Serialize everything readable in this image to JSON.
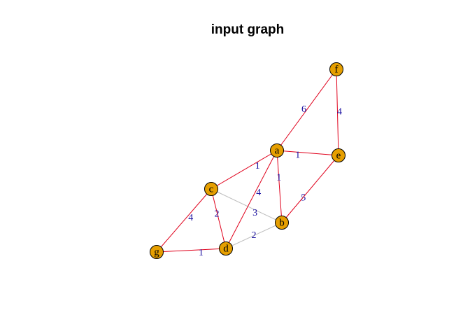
{
  "title": "input graph",
  "colors": {
    "tree_edge": "#e0001b",
    "non_tree_edge": "#bebebe",
    "node_fill": "#e69f00",
    "node_stroke": "#000000",
    "weight_text": "#1a10a0"
  },
  "nodes": [
    {
      "id": "a",
      "label": "a"
    },
    {
      "id": "b",
      "label": "b"
    },
    {
      "id": "c",
      "label": "c"
    },
    {
      "id": "d",
      "label": "d"
    },
    {
      "id": "e",
      "label": "e"
    },
    {
      "id": "f",
      "label": "f"
    },
    {
      "id": "g",
      "label": "g"
    }
  ],
  "edges": [
    {
      "from": "a",
      "to": "f",
      "weight": "6",
      "in_tree": true
    },
    {
      "from": "f",
      "to": "e",
      "weight": "4",
      "in_tree": true
    },
    {
      "from": "a",
      "to": "e",
      "weight": "1",
      "in_tree": true
    },
    {
      "from": "a",
      "to": "c",
      "weight": "1",
      "in_tree": true
    },
    {
      "from": "a",
      "to": "b",
      "weight": "1",
      "in_tree": true
    },
    {
      "from": "a",
      "to": "d",
      "weight": "4",
      "in_tree": true
    },
    {
      "from": "e",
      "to": "b",
      "weight": "5",
      "in_tree": true
    },
    {
      "from": "c",
      "to": "g",
      "weight": "4",
      "in_tree": true
    },
    {
      "from": "c",
      "to": "d",
      "weight": "2",
      "in_tree": true
    },
    {
      "from": "c",
      "to": "b",
      "weight": "3",
      "in_tree": false
    },
    {
      "from": "d",
      "to": "b",
      "weight": "2",
      "in_tree": false
    },
    {
      "from": "g",
      "to": "d",
      "weight": "1",
      "in_tree": true
    }
  ]
}
